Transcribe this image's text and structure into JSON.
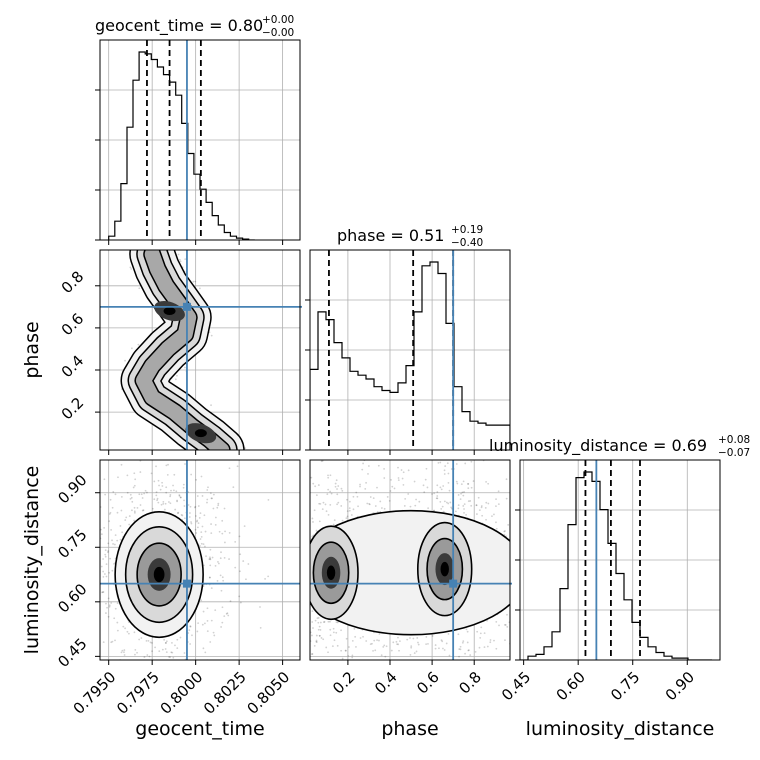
{
  "chart_data": {
    "type": "corner",
    "parameters": [
      "geocent_time",
      "phase",
      "luminosity_distance"
    ],
    "truth_color": "#4682b4",
    "titles": [
      {
        "param": "geocent_time",
        "label": "geocent_time = 0.80",
        "plus": "+0.00",
        "minus": "−0.00"
      },
      {
        "param": "phase",
        "label": "phase = 0.51",
        "plus": "+0.19",
        "minus": "−0.40"
      },
      {
        "param": "luminosity_distance",
        "label": "luminosity_distance = 0.69",
        "plus": "+0.08",
        "minus": "−0.07"
      }
    ],
    "axes": {
      "geocent_time": {
        "range": [
          0.7945,
          0.806
        ],
        "ticks": [
          0.795,
          0.7975,
          0.8,
          0.8025,
          0.805
        ],
        "tick_labels": [
          "0.7950",
          "0.7975",
          "0.8000",
          "0.8025",
          "0.8050"
        ],
        "truth": 0.7995,
        "quantiles": [
          0.7972,
          0.7985,
          0.8003
        ]
      },
      "phase": {
        "range": [
          0.02,
          0.97
        ],
        "ticks": [
          0.2,
          0.4,
          0.6,
          0.8
        ],
        "tick_labels": [
          "0.2",
          "0.4",
          "0.6",
          "0.8"
        ],
        "truth": 0.7,
        "quantiles": [
          0.11,
          0.51,
          0.7
        ]
      },
      "luminosity_distance": {
        "range": [
          0.44,
          0.99
        ],
        "ticks": [
          0.45,
          0.6,
          0.75,
          0.9
        ],
        "tick_labels": [
          "0.45",
          "0.60",
          "0.75",
          "0.90"
        ],
        "truth": 0.65,
        "quantiles": [
          0.62,
          0.69,
          0.77
        ]
      }
    },
    "histograms": {
      "geocent_time": {
        "bin_start": 0.795,
        "bin_width": 0.00035,
        "counts": [
          0.02,
          0.1,
          0.3,
          0.6,
          0.85,
          1.0,
          0.99,
          0.96,
          0.92,
          0.88,
          0.84,
          0.77,
          0.62,
          0.46,
          0.35,
          0.27,
          0.2,
          0.13,
          0.08,
          0.04,
          0.02,
          0.01,
          0.005,
          0.0
        ]
      },
      "phase": {
        "bin_start": 0.02,
        "bin_width": 0.038,
        "counts": [
          0.42,
          0.72,
          0.68,
          0.56,
          0.48,
          0.41,
          0.39,
          0.37,
          0.33,
          0.31,
          0.3,
          0.35,
          0.44,
          0.72,
          0.96,
          0.98,
          0.92,
          0.66,
          0.33,
          0.2,
          0.15,
          0.14,
          0.13,
          0.13,
          0.13
        ]
      },
      "luminosity_distance": {
        "bin_start": 0.44,
        "bin_width": 0.022,
        "counts": [
          0.0,
          0.02,
          0.03,
          0.07,
          0.15,
          0.38,
          0.72,
          0.97,
          1.0,
          0.95,
          0.8,
          0.62,
          0.46,
          0.32,
          0.2,
          0.12,
          0.07,
          0.04,
          0.02,
          0.01,
          0.01,
          0.0,
          0.0,
          0.0
        ]
      }
    },
    "density_2d": {
      "geocent_time_vs_phase": {
        "ridge": [
          [
            0.7975,
            0.95
          ],
          [
            0.7978,
            0.88
          ],
          [
            0.7983,
            0.8
          ],
          [
            0.799,
            0.72
          ],
          [
            0.7996,
            0.65
          ],
          [
            0.7994,
            0.57
          ],
          [
            0.7984,
            0.5
          ],
          [
            0.7975,
            0.42
          ],
          [
            0.797,
            0.35
          ],
          [
            0.7975,
            0.27
          ],
          [
            0.7988,
            0.2
          ],
          [
            0.7998,
            0.13
          ],
          [
            0.8008,
            0.07
          ],
          [
            0.8015,
            0.02
          ]
        ],
        "modes": [
          [
            0.7985,
            0.68
          ],
          [
            0.8003,
            0.1
          ]
        ]
      },
      "geocent_time_vs_luminosity_distance": {
        "mode": [
          0.7979,
          0.69
        ],
        "spread": [
          0.0011,
          0.075
        ]
      },
      "phase_vs_luminosity_distance": {
        "modes": [
          [
            0.66,
            0.69
          ],
          [
            0.12,
            0.68
          ]
        ],
        "spread": [
          0.08,
          0.08
        ]
      }
    }
  }
}
